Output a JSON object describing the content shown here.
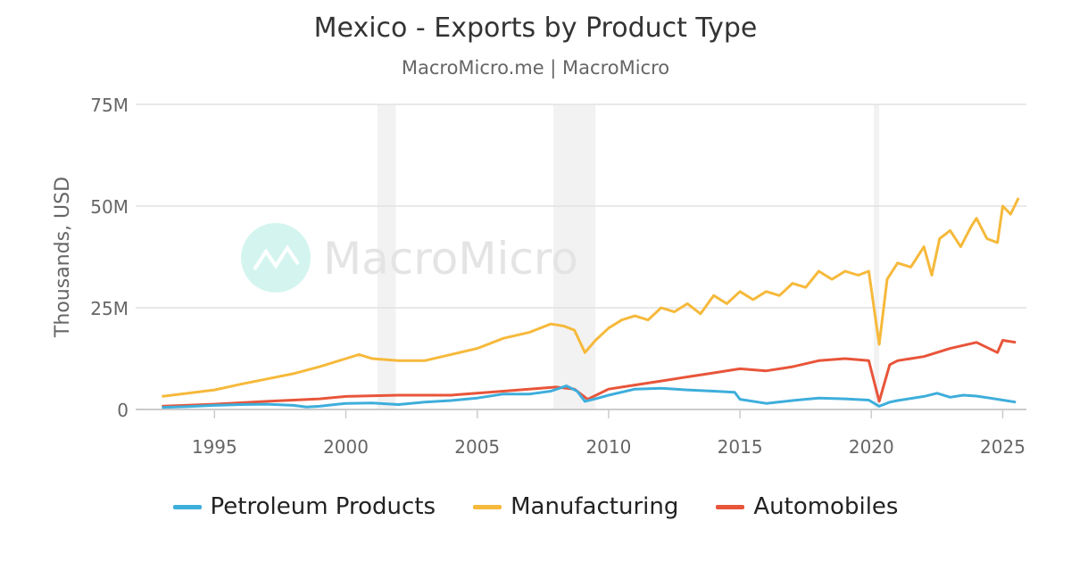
{
  "chart_data": {
    "type": "line",
    "title": "Mexico - Exports by Product Type",
    "subtitle": "MacroMicro.me | MacroMicro",
    "watermark": "MacroMicro",
    "ylabel": "Thousands, USD",
    "xlabel": "",
    "xlim": [
      1992,
      2025.9
    ],
    "ylim": [
      0,
      75
    ],
    "y_unit": "M",
    "x_ticks": [
      "1995",
      "2000",
      "2005",
      "2010",
      "2015",
      "2020",
      "2025"
    ],
    "y_ticks": [
      "0",
      "25M",
      "50M",
      "75M"
    ],
    "grid": true,
    "legend_position": "bottom",
    "recession_bands": [
      [
        2001.2,
        2001.9
      ],
      [
        2007.9,
        2009.5
      ],
      [
        2020.1,
        2020.3
      ]
    ],
    "series": [
      {
        "name": "Petroleum Products",
        "color": "#3eaedb",
        "x": [
          1993,
          1994,
          1995,
          1996,
          1997,
          1998,
          1998.5,
          1999,
          2000,
          2001,
          2002,
          2003,
          2004,
          2005,
          2006,
          2007,
          2007.8,
          2008.4,
          2008.8,
          2009.1,
          2009.5,
          2010,
          2011,
          2012,
          2013,
          2014,
          2014.8,
          2015,
          2016,
          2017,
          2018,
          2019,
          2019.9,
          2020.3,
          2020.7,
          2021,
          2022,
          2022.5,
          2023,
          2023.5,
          2024,
          2024.5,
          2025,
          2025.5
        ],
        "values": [
          0.5,
          0.7,
          1.0,
          1.2,
          1.3,
          1.0,
          0.6,
          0.8,
          1.5,
          1.6,
          1.2,
          1.8,
          2.2,
          2.8,
          3.8,
          3.8,
          4.5,
          5.8,
          4.5,
          2.0,
          2.6,
          3.5,
          5.0,
          5.2,
          4.8,
          4.5,
          4.2,
          2.5,
          1.5,
          2.2,
          2.8,
          2.6,
          2.3,
          0.8,
          1.8,
          2.2,
          3.2,
          4.0,
          3.0,
          3.5,
          3.3,
          2.8,
          2.3,
          1.8
        ]
      },
      {
        "name": "Manufacturing",
        "color": "#f6b93b",
        "x": [
          1993,
          1994,
          1995,
          1996,
          1997,
          1998,
          1999,
          2000,
          2000.5,
          2001,
          2002,
          2003,
          2004,
          2005,
          2006,
          2007,
          2007.8,
          2008.3,
          2008.7,
          2009.1,
          2009.5,
          2010,
          2010.5,
          2011,
          2011.5,
          2012,
          2012.5,
          2013,
          2013.5,
          2014,
          2014.5,
          2015,
          2015.5,
          2016,
          2016.5,
          2017,
          2017.5,
          2018,
          2018.5,
          2019,
          2019.5,
          2019.9,
          2020.3,
          2020.6,
          2021,
          2021.5,
          2022,
          2022.3,
          2022.6,
          2023,
          2023.4,
          2023.8,
          2024,
          2024.4,
          2024.8,
          2025,
          2025.3,
          2025.6
        ],
        "values": [
          3.2,
          4.0,
          4.8,
          6.2,
          7.5,
          8.8,
          10.5,
          12.5,
          13.5,
          12.5,
          12.0,
          12.0,
          13.5,
          15.0,
          17.5,
          19.0,
          21.0,
          20.5,
          19.5,
          14.0,
          17.0,
          20.0,
          22.0,
          23.0,
          22.0,
          25.0,
          24.0,
          26.0,
          23.5,
          28.0,
          26.0,
          29.0,
          27.0,
          29.0,
          28.0,
          31.0,
          30.0,
          34.0,
          32.0,
          34.0,
          33.0,
          34.0,
          16.0,
          32.0,
          36.0,
          35.0,
          40.0,
          33.0,
          42.0,
          44.0,
          40.0,
          45.0,
          47.0,
          42.0,
          41.0,
          50.0,
          48.0,
          52.0
        ]
      },
      {
        "name": "Automobiles",
        "color": "#e8553a",
        "x": [
          1993,
          1995,
          1997,
          1999,
          2000,
          2002,
          2004,
          2006,
          2008,
          2008.7,
          2009.2,
          2010,
          2011,
          2012,
          2013,
          2014,
          2015,
          2016,
          2017,
          2018,
          2019,
          2019.9,
          2020.3,
          2020.7,
          2021,
          2022,
          2023,
          2024,
          2024.8,
          2025,
          2025.5
        ],
        "values": [
          0.8,
          1.3,
          2.0,
          2.6,
          3.2,
          3.5,
          3.5,
          4.5,
          5.5,
          5.0,
          2.5,
          5.0,
          6.0,
          7.0,
          8.0,
          9.0,
          10.0,
          9.5,
          10.5,
          12.0,
          12.5,
          12.0,
          2.0,
          11.0,
          12.0,
          13.0,
          15.0,
          16.5,
          14.0,
          17.0,
          16.5
        ]
      }
    ]
  }
}
